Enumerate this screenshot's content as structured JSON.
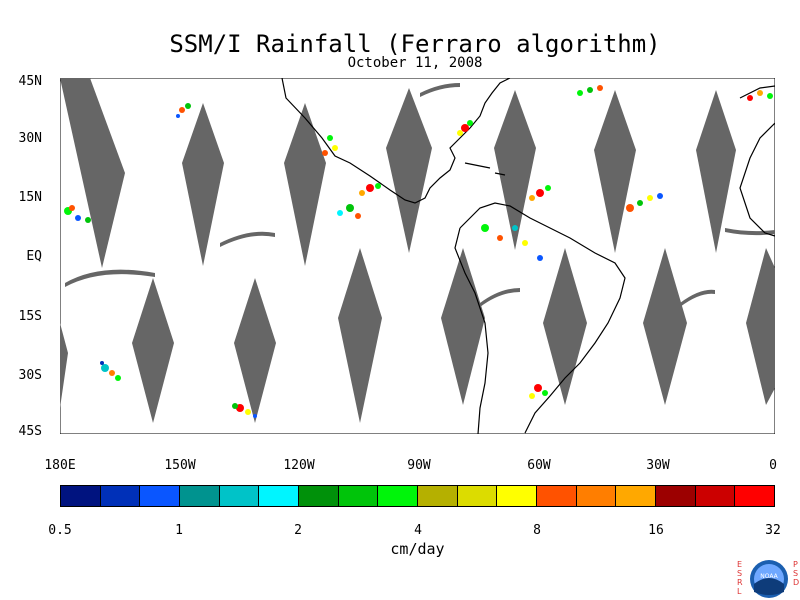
{
  "title": "SSM/I Rainfall (Ferraro algorithm)",
  "date": "October 11, 2008",
  "lat_labels": [
    "45N",
    "30N",
    "15N",
    "EQ",
    "15S",
    "30S",
    "45S"
  ],
  "lon_labels": [
    "180E",
    "150W",
    "120W",
    "90W",
    "60W",
    "30W",
    "0"
  ],
  "colorbar": {
    "colors": [
      "#00137f",
      "#0030b8",
      "#0a56ff",
      "#00938f",
      "#00c3c8",
      "#00f5ff",
      "#00910a",
      "#00c40a",
      "#00f50a",
      "#b5b000",
      "#dcdc00",
      "#ffff00",
      "#ff5200",
      "#ff7e00",
      "#ffa800",
      "#9c0000",
      "#cc0000",
      "#ff0000"
    ],
    "tick_labels": [
      "0.5",
      "1",
      "2",
      "4",
      "8",
      "16",
      "32"
    ],
    "units": "cm/day"
  },
  "logo": {
    "left_letters": [
      "E",
      "S",
      "R",
      "L"
    ],
    "right_letters": [
      "P",
      "S",
      "D"
    ],
    "center_text": "NOAA"
  },
  "colors": {
    "swath_gap": "#666666",
    "coastline": "#000000",
    "background": "#ffffff"
  }
}
